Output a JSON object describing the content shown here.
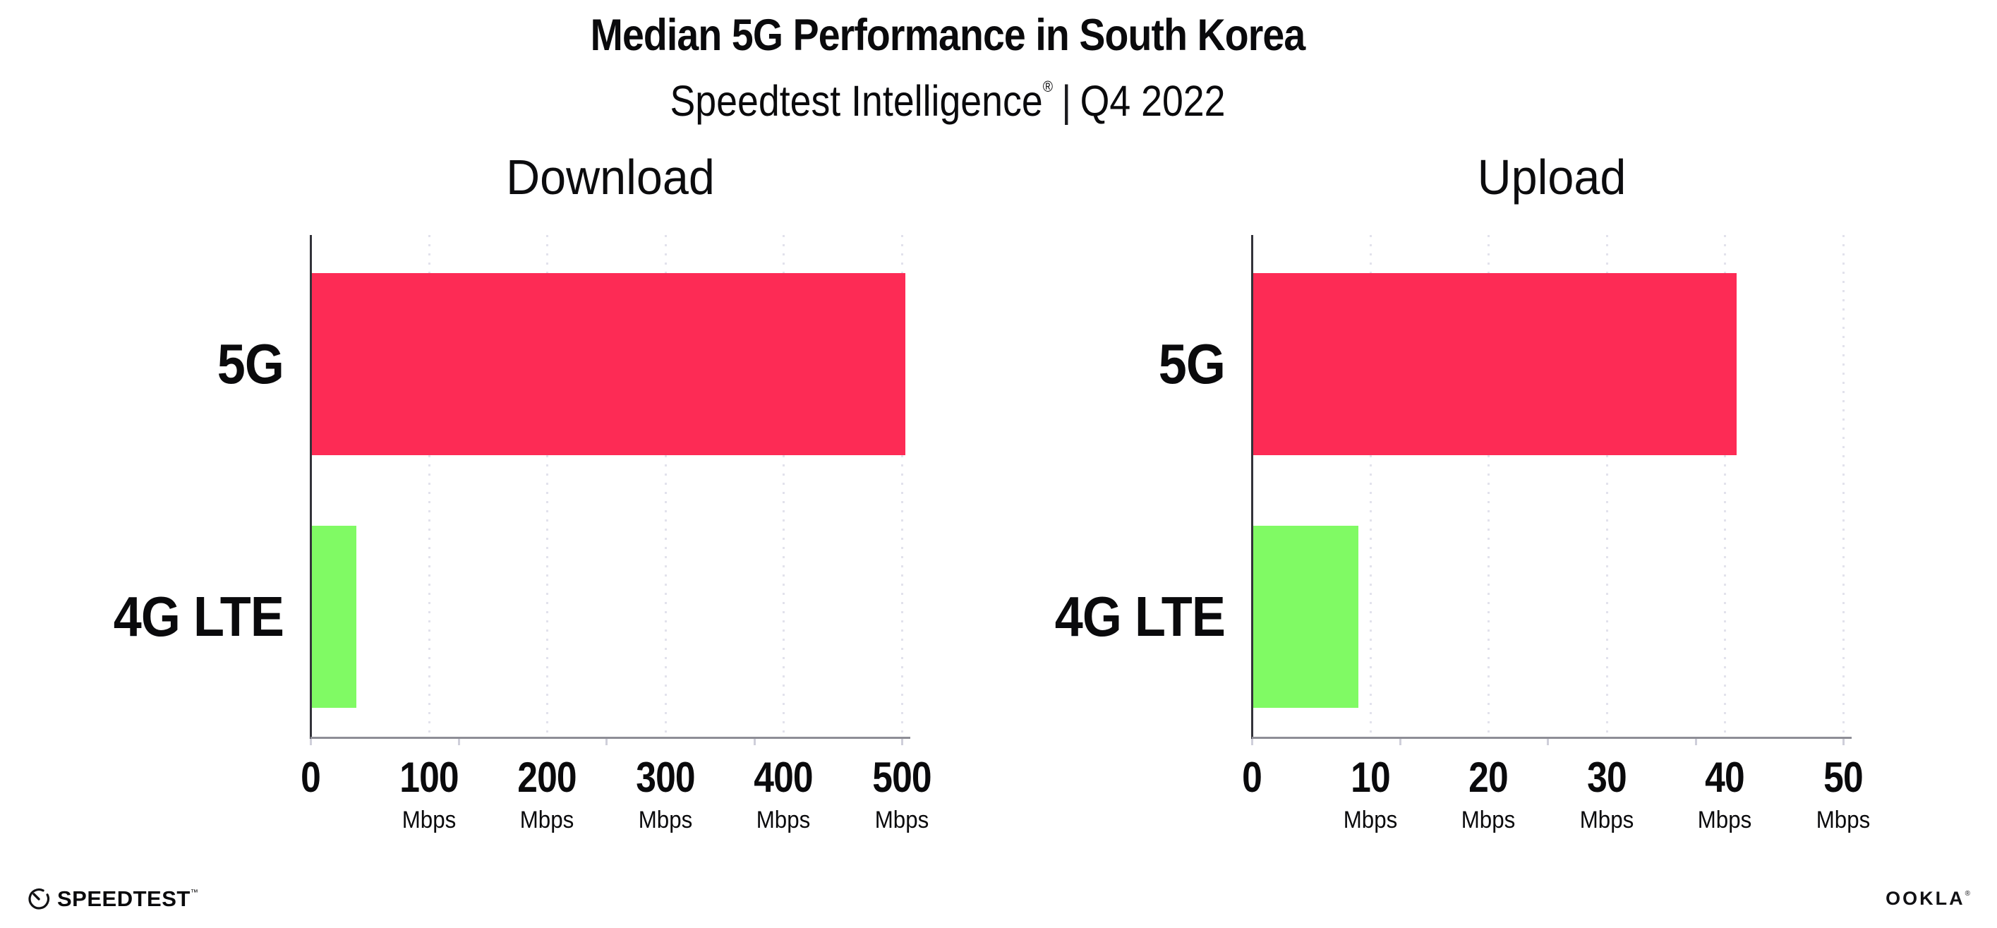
{
  "header": {
    "title": "Median 5G Performance in South Korea",
    "subtitle_brand": "Speedtest Intelligence",
    "subtitle_reg": "®",
    "subtitle_sep": "|",
    "subtitle_period": "Q4 2022"
  },
  "colors": {
    "bar_5g_pink": "#FD2B55",
    "bar_4g_green": "#80FA64",
    "gridline": "#e2e2ec",
    "y_axis_line": "#33333a",
    "x_axis_line": "#8e8e96",
    "text": "#0a0a0c",
    "background": "#ffffff"
  },
  "chart_data": [
    {
      "type": "bar",
      "orientation": "horizontal",
      "title": "Download",
      "categories": [
        "5G",
        "4G LTE"
      ],
      "values": [
        503,
        39
      ],
      "unit": "Mbps",
      "xlim": [
        0,
        500
      ],
      "xticks": [
        0,
        100,
        200,
        300,
        400,
        500
      ],
      "tick_unit_label": "Mbps",
      "grid": "vertical-dotted",
      "legend": "none",
      "bar_colors": [
        "#FD2B55",
        "#80FA64"
      ]
    },
    {
      "type": "bar",
      "orientation": "horizontal",
      "title": "Upload",
      "categories": [
        "5G",
        "4G LTE"
      ],
      "values": [
        41,
        9
      ],
      "unit": "Mbps",
      "xlim": [
        0,
        50
      ],
      "xticks": [
        0,
        10,
        20,
        30,
        40,
        50
      ],
      "tick_unit_label": "Mbps",
      "grid": "vertical-dotted",
      "legend": "none",
      "bar_colors": [
        "#FD2B55",
        "#80FA64"
      ]
    }
  ],
  "footer": {
    "speedtest_label": "SPEEDTEST",
    "speedtest_tm": "™",
    "ookla_label_start": "OO",
    "ookla_label_k": "K",
    "ookla_label_end": "LA",
    "ookla_reg": "®"
  }
}
